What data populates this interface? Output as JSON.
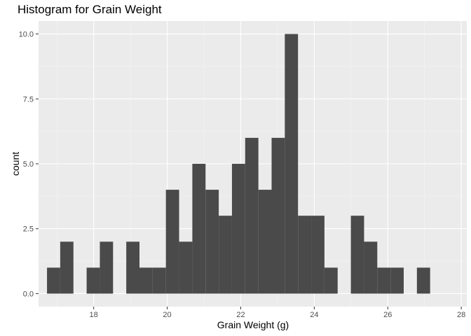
{
  "chart_data": {
    "type": "bar",
    "title": "Histogram for Grain Weight",
    "xlabel": "Grain Weight (g)",
    "ylabel": "count",
    "xlim": [
      16.5,
      28.15
    ],
    "ylim": [
      -0.5,
      10.5
    ],
    "x_ticks": [
      18,
      20,
      22,
      24,
      26,
      28
    ],
    "x_tick_labels": [
      "18",
      "20",
      "22",
      "24",
      "26",
      "28"
    ],
    "y_ticks": [
      0,
      2.5,
      5,
      7.5,
      10
    ],
    "y_tick_labels": [
      "0.0",
      "2.5",
      "5.0",
      "7.5",
      "10.0"
    ],
    "bin_width": 0.3594,
    "first_bin_start": 16.73,
    "counts": [
      1,
      2,
      0,
      1,
      2,
      0,
      2,
      1,
      1,
      4,
      2,
      5,
      4,
      3,
      5,
      6,
      4,
      6,
      10,
      3,
      3,
      1,
      0,
      3,
      2,
      1,
      1,
      0,
      1
    ],
    "grid": true,
    "background": "#EBEBEB",
    "bar_color": "#4A4A4A",
    "legend": "none"
  }
}
